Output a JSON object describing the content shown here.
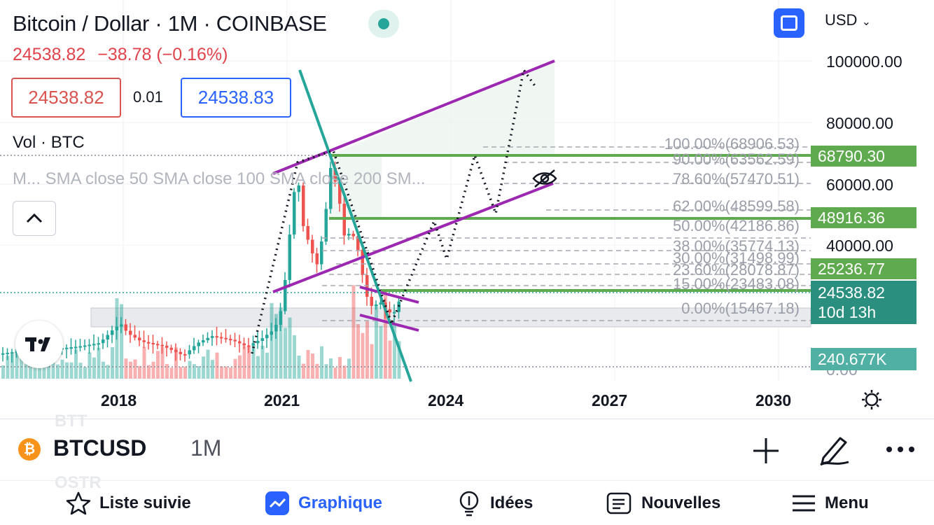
{
  "header": {
    "title": "Bitcoin / Dollar · 1M · COINBASE",
    "last_price": "24538.82",
    "change": "−38.78 (−0.16%)",
    "sell_price": "24538.82",
    "spread": "0.01",
    "buy_price": "24538.83",
    "currency": "USD"
  },
  "indicators": {
    "volume": "Vol · BTC",
    "sma": "M...  SMA close 50 SMA close 100 SMA close 200 SM..."
  },
  "price_axis": {
    "labels": [
      "100000.00",
      "80000.00",
      "60000.00",
      "40000.00",
      "0.00"
    ],
    "tags": {
      "level_high": "68790.30",
      "level_mid": "48916.36",
      "level_low": "25236.77",
      "current_price": "24538.82",
      "countdown": "10d 13h",
      "volume": "240.677K"
    }
  },
  "fibonacci": [
    "100.00%(68906.53)",
    "90.00%(63562.59)",
    "78.60%(57470.51)",
    "62.00%(48599.58)",
    "50.00%(42186.86)",
    "38.00%(35774.13)",
    "30.00%(31498.99)",
    "23.60%(28078.87)",
    "15.00%(23483.08)",
    "0.00%(15467.18)"
  ],
  "time_axis": [
    "2018",
    "2021",
    "2024",
    "2027",
    "2030"
  ],
  "symbol_bar": {
    "symbol": "BTCUSD",
    "interval": "1M",
    "ghost_top": "BTT",
    "ghost_bottom": "OSTR"
  },
  "nav": {
    "watchlist": "Liste suivie",
    "chart": "Graphique",
    "ideas": "Idées",
    "news": "Nouvelles",
    "menu": "Menu"
  },
  "colors": {
    "up": "#26a69a",
    "down": "#ef5350",
    "channel": "#9c27b0",
    "trendline": "#26a69a",
    "level": "#5fa94f",
    "accent": "#2962ff"
  },
  "icons": [
    "eye-off-icon",
    "settings-icon",
    "plus-icon",
    "pencil-icon",
    "more-icon",
    "star-icon",
    "chart-icon",
    "lightbulb-icon",
    "news-icon",
    "hamburger-icon"
  ]
}
